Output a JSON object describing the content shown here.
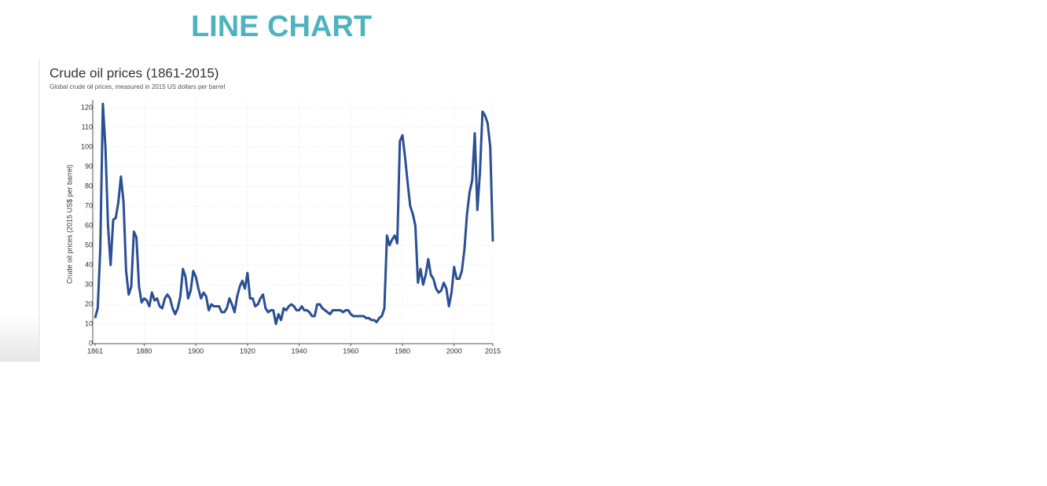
{
  "slide_title": "LINE CHART",
  "chart_data": {
    "type": "line",
    "title": "Crude oil prices (1861-2015)",
    "subtitle": "Global crude oil prices, measured in 2015 US dollars per barrel",
    "y_label": "Crude oil prices (2015 US$ per barrel)",
    "color": "#2b4f93",
    "grid": true,
    "xlim": [
      1861,
      2015
    ],
    "xticks": [
      1861,
      1880,
      1900,
      1920,
      1940,
      1960,
      1980,
      2000,
      2015
    ],
    "ylim": [
      0,
      124
    ],
    "yticks": [
      0,
      10,
      20,
      30,
      40,
      50,
      60,
      70,
      80,
      90,
      100,
      110,
      120
    ],
    "x": [
      1861,
      1862,
      1863,
      1864,
      1865,
      1866,
      1867,
      1868,
      1869,
      1870,
      1871,
      1872,
      1873,
      1874,
      1875,
      1876,
      1877,
      1878,
      1879,
      1880,
      1881,
      1882,
      1883,
      1884,
      1885,
      1886,
      1887,
      1888,
      1889,
      1890,
      1891,
      1892,
      1893,
      1894,
      1895,
      1896,
      1897,
      1898,
      1899,
      1900,
      1901,
      1902,
      1903,
      1904,
      1905,
      1906,
      1907,
      1908,
      1909,
      1910,
      1911,
      1912,
      1913,
      1914,
      1915,
      1916,
      1917,
      1918,
      1919,
      1920,
      1921,
      1922,
      1923,
      1924,
      1925,
      1926,
      1927,
      1928,
      1929,
      1930,
      1931,
      1932,
      1933,
      1934,
      1935,
      1936,
      1937,
      1938,
      1939,
      1940,
      1941,
      1942,
      1943,
      1944,
      1945,
      1946,
      1947,
      1948,
      1949,
      1950,
      1951,
      1952,
      1953,
      1954,
      1955,
      1956,
      1957,
      1958,
      1959,
      1960,
      1961,
      1962,
      1963,
      1964,
      1965,
      1966,
      1967,
      1968,
      1969,
      1970,
      1971,
      1972,
      1973,
      1974,
      1975,
      1976,
      1977,
      1978,
      1979,
      1980,
      1981,
      1982,
      1983,
      1984,
      1985,
      1986,
      1987,
      1988,
      1989,
      1990,
      1991,
      1992,
      1993,
      1994,
      1995,
      1996,
      1997,
      1998,
      1999,
      2000,
      2001,
      2002,
      2003,
      2004,
      2005,
      2006,
      2007,
      2008,
      2009,
      2010,
      2011,
      2012,
      2013,
      2014,
      2015
    ],
    "values": [
      13,
      18,
      48,
      122,
      100,
      60,
      40,
      63,
      64,
      72,
      85,
      72,
      37,
      25,
      29,
      57,
      54,
      29,
      21,
      23,
      22,
      19,
      26,
      22,
      23,
      19,
      18,
      23,
      25,
      23,
      18,
      15,
      18,
      24,
      38,
      34,
      23,
      27,
      37,
      34,
      28,
      23,
      26,
      24,
      17,
      20,
      19,
      19,
      19,
      16,
      16,
      18,
      23,
      20,
      16,
      24,
      29,
      32,
      28,
      36,
      23,
      23,
      19,
      20,
      23,
      25,
      18,
      16,
      17,
      17,
      10,
      15,
      12,
      18,
      17,
      19,
      20,
      19,
      17,
      17,
      19,
      17,
      17,
      16,
      14,
      14,
      20,
      20,
      18,
      17,
      16,
      15,
      17,
      17,
      17,
      17,
      16,
      17,
      17,
      15,
      14,
      14,
      14,
      14,
      14,
      13,
      13,
      12,
      12,
      11,
      13,
      14,
      18,
      55,
      50,
      53,
      55,
      51,
      103,
      106,
      95,
      82,
      70,
      66,
      60,
      31,
      38,
      30,
      35,
      43,
      35,
      33,
      28,
      26,
      27,
      31,
      28,
      19,
      26,
      39,
      33,
      33,
      37,
      48,
      66,
      77,
      83,
      107,
      68,
      87,
      118,
      116,
      112,
      100,
      52
    ]
  }
}
